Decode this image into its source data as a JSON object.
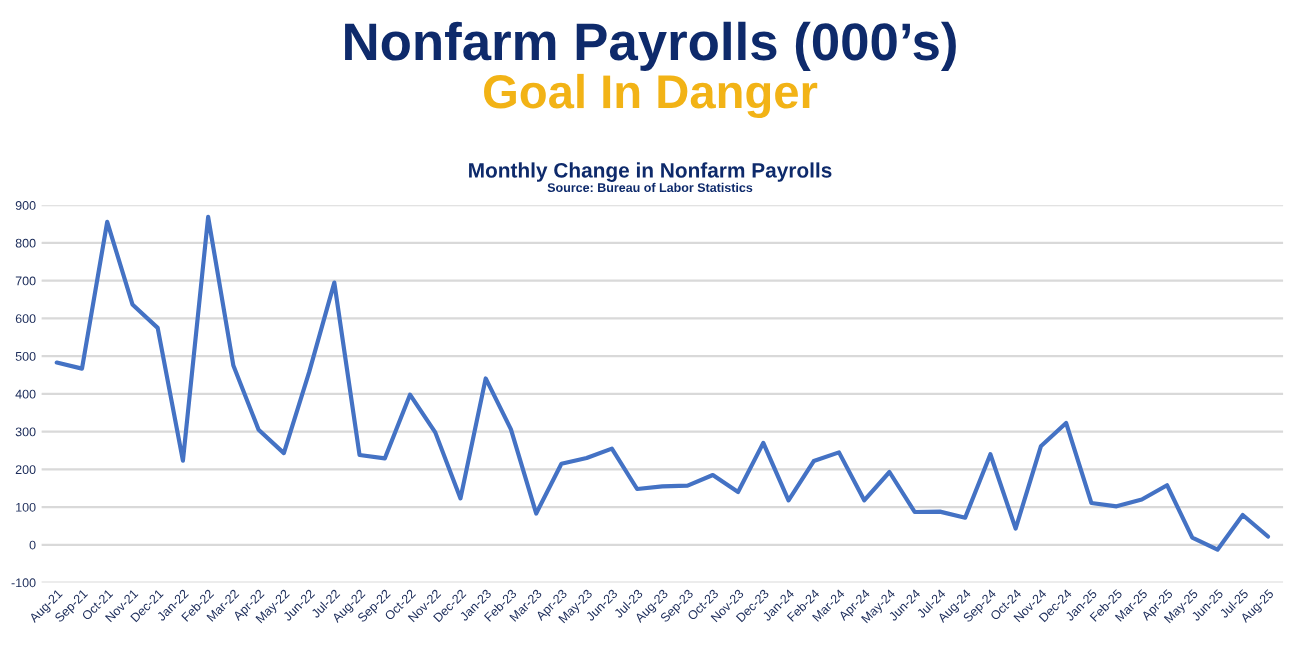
{
  "chart_data": {
    "type": "line",
    "title": "Nonfarm Payrolls (000’s)",
    "subtitle": "Goal In Danger",
    "annotations": [
      "Monthly Change in Nonfarm Payrolls",
      "Source: Bureau of Labor Statistics"
    ],
    "categories": [
      "Aug-21",
      "Sep-21",
      "Oct-21",
      "Nov-21",
      "Dec-21",
      "Jan-22",
      "Feb-22",
      "Mar-22",
      "Apr-22",
      "May-22",
      "Jun-22",
      "Jul-22",
      "Aug-22",
      "Sep-22",
      "Oct-22",
      "Nov-22",
      "Dec-22",
      "Jan-23",
      "Feb-23",
      "Mar-23",
      "Apr-23",
      "May-23",
      "Jun-23",
      "Jul-23",
      "Aug-23",
      "Sep-23",
      "Oct-23",
      "Nov-23",
      "Dec-23",
      "Jan-24",
      "Feb-24",
      "Mar-24",
      "Apr-24",
      "May-24",
      "Jun-24",
      "Jul-24",
      "Aug-24",
      "Sep-24",
      "Oct-24",
      "Nov-24",
      "Dec-24",
      "Jan-25",
      "Feb-25",
      "Mar-25",
      "Apr-25",
      "May-25",
      "Jun-25",
      "Jul-25",
      "Aug-25"
    ],
    "series": [
      {
        "color": "#4472c4",
        "values": [
          483,
          467,
          856,
          637,
          575,
          223,
          869,
          475,
          305,
          243,
          457,
          695,
          238,
          229,
          398,
          298,
          123,
          441,
          306,
          83,
          215,
          230,
          255,
          148,
          155,
          157,
          185,
          140,
          270,
          118,
          222,
          245,
          118,
          193,
          87,
          88,
          72,
          240,
          43,
          261,
          323,
          111,
          102,
          120,
          158,
          19,
          -13,
          79,
          22
        ]
      }
    ],
    "ylim": [
      -100,
      900
    ],
    "yticks": [
      -100,
      0,
      100,
      200,
      300,
      400,
      500,
      600,
      700,
      800,
      900
    ],
    "grid": "y",
    "marker": "none",
    "line_style": "solid",
    "legend": false
  }
}
